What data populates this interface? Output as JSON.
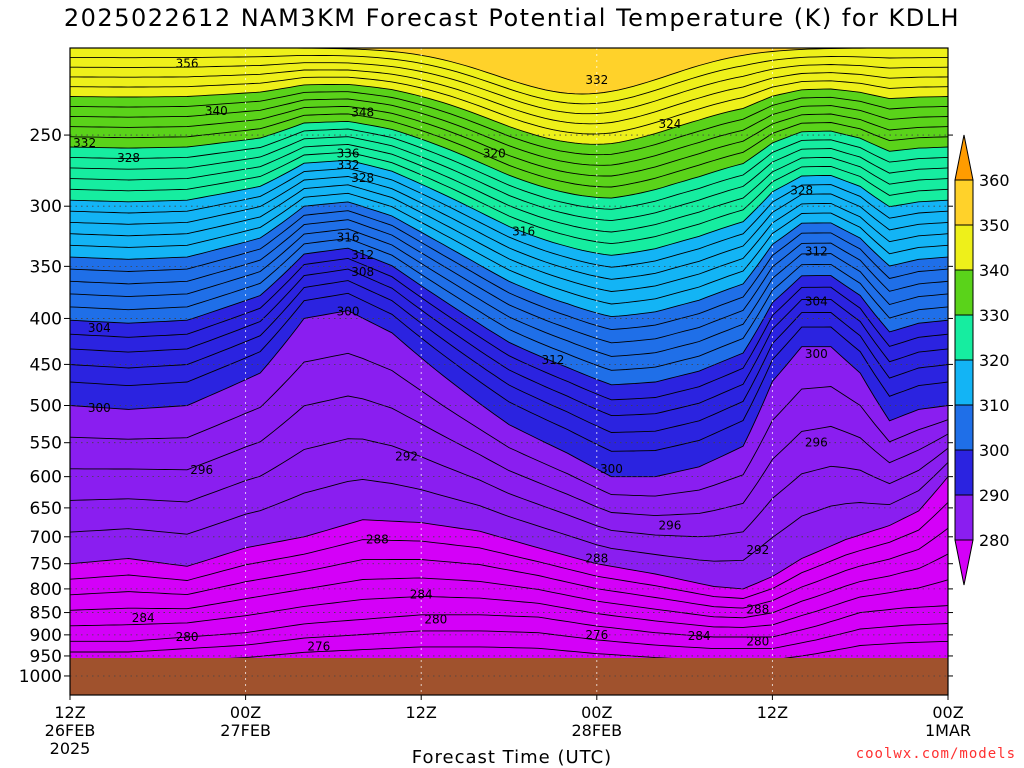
{
  "header": {
    "title": "2025022612 NAM3KM Forecast Potential Temperature (K) for KDLH"
  },
  "footer": {
    "credit": "coolwx.com/models"
  },
  "colors": {
    "ground": "#a0522d",
    "bands": [
      "#d400f8",
      "#8a1ef0",
      "#2b23e0",
      "#1f6fe8",
      "#13b4f5",
      "#16eda0",
      "#5ad31a",
      "#eef01a",
      "#ffd22a",
      "#ff9c00"
    ]
  },
  "chart_data": {
    "type": "contour",
    "title": "2025022612 NAM3KM Forecast Potential Temperature (K) for KDLH",
    "xlabel": "Forecast Time (UTC)",
    "ylabel": "",
    "x_ticks": [
      {
        "value": 0,
        "line1": "12Z",
        "line2": "26FEB",
        "line3": "2025"
      },
      {
        "value": 12,
        "line1": "00Z",
        "line2": "27FEB",
        "line3": ""
      },
      {
        "value": 24,
        "line1": "12Z",
        "line2": "",
        "line3": ""
      },
      {
        "value": 36,
        "line1": "00Z",
        "line2": "28FEB",
        "line3": ""
      },
      {
        "value": 48,
        "line1": "12Z",
        "line2": "",
        "line3": ""
      },
      {
        "value": 60,
        "line1": "00Z",
        "line2": "1MAR",
        "line3": ""
      }
    ],
    "xlim": [
      0,
      60
    ],
    "y_ticks": [
      "250",
      "300",
      "350",
      "400",
      "450",
      "500",
      "550",
      "600",
      "650",
      "700",
      "750",
      "800",
      "850",
      "900",
      "950",
      "1000"
    ],
    "ylim": [
      1050,
      200
    ],
    "y_scale": "log",
    "colorbar": {
      "levels": [
        "280",
        "290",
        "300",
        "310",
        "320",
        "330",
        "340",
        "350",
        "360"
      ],
      "extend": "both"
    },
    "contour_interval": 2,
    "ridge_lines": [
      {
        "value": 300,
        "points": [
          [
            0,
            500
          ],
          [
            4,
            505
          ],
          [
            8,
            500
          ],
          [
            13,
            460
          ],
          [
            16,
            400
          ],
          [
            19,
            392
          ],
          [
            22,
            415
          ],
          [
            26,
            470
          ],
          [
            30,
            525
          ],
          [
            34,
            565
          ],
          [
            37,
            600
          ],
          [
            40,
            600
          ],
          [
            43,
            585
          ],
          [
            46,
            555
          ],
          [
            48,
            470
          ],
          [
            50,
            430
          ],
          [
            52,
            430
          ],
          [
            54,
            460
          ],
          [
            56,
            520
          ],
          [
            58,
            505
          ],
          [
            60,
            500
          ]
        ]
      },
      {
        "value": 290,
        "points": [
          [
            0,
            750
          ],
          [
            4,
            740
          ],
          [
            8,
            755
          ],
          [
            12,
            720
          ],
          [
            16,
            700
          ],
          [
            20,
            670
          ],
          [
            24,
            675
          ],
          [
            28,
            690
          ],
          [
            32,
            720
          ],
          [
            36,
            750
          ],
          [
            40,
            770
          ],
          [
            44,
            795
          ],
          [
            46,
            800
          ],
          [
            48,
            775
          ],
          [
            50,
            740
          ],
          [
            53,
            705
          ],
          [
            56,
            680
          ],
          [
            58,
            655
          ],
          [
            60,
            600
          ]
        ]
      },
      {
        "value": 280,
        "points": [
          [
            0,
            915
          ],
          [
            4,
            915
          ],
          [
            8,
            905
          ],
          [
            12,
            895
          ],
          [
            16,
            875
          ],
          [
            20,
            865
          ],
          [
            24,
            855
          ],
          [
            28,
            855
          ],
          [
            32,
            860
          ],
          [
            36,
            880
          ],
          [
            40,
            895
          ],
          [
            44,
            905
          ],
          [
            48,
            905
          ],
          [
            51,
            880
          ],
          [
            54,
            850
          ],
          [
            57,
            840
          ],
          [
            60,
            835
          ]
        ]
      }
    ],
    "contour_labels": [
      {
        "text": "356",
        "x": 8,
        "p": 208
      },
      {
        "text": "340",
        "x": 10,
        "p": 235
      },
      {
        "text": "332",
        "x": 1,
        "p": 255
      },
      {
        "text": "328",
        "x": 4,
        "p": 265
      },
      {
        "text": "348",
        "x": 20,
        "p": 236
      },
      {
        "text": "336",
        "x": 19,
        "p": 262
      },
      {
        "text": "332",
        "x": 19,
        "p": 270
      },
      {
        "text": "328",
        "x": 20,
        "p": 279
      },
      {
        "text": "316",
        "x": 19,
        "p": 325
      },
      {
        "text": "312",
        "x": 20,
        "p": 340
      },
      {
        "text": "308",
        "x": 20,
        "p": 355
      },
      {
        "text": "300",
        "x": 19,
        "p": 393
      },
      {
        "text": "304",
        "x": 2,
        "p": 410
      },
      {
        "text": "300",
        "x": 2,
        "p": 503
      },
      {
        "text": "296",
        "x": 9,
        "p": 590
      },
      {
        "text": "292",
        "x": 23,
        "p": 570
      },
      {
        "text": "288",
        "x": 21,
        "p": 705
      },
      {
        "text": "284",
        "x": 24,
        "p": 812
      },
      {
        "text": "284",
        "x": 5,
        "p": 862
      },
      {
        "text": "280",
        "x": 25,
        "p": 865
      },
      {
        "text": "280",
        "x": 8,
        "p": 905
      },
      {
        "text": "276",
        "x": 17,
        "p": 927
      },
      {
        "text": "332",
        "x": 36,
        "p": 217
      },
      {
        "text": "324",
        "x": 41,
        "p": 243
      },
      {
        "text": "320",
        "x": 29,
        "p": 262
      },
      {
        "text": "316",
        "x": 31,
        "p": 320
      },
      {
        "text": "312",
        "x": 33,
        "p": 445
      },
      {
        "text": "300",
        "x": 37,
        "p": 588
      },
      {
        "text": "296",
        "x": 41,
        "p": 680
      },
      {
        "text": "288",
        "x": 36,
        "p": 740
      },
      {
        "text": "276",
        "x": 36,
        "p": 900
      },
      {
        "text": "292",
        "x": 47,
        "p": 724
      },
      {
        "text": "288",
        "x": 47,
        "p": 843
      },
      {
        "text": "284",
        "x": 43,
        "p": 903
      },
      {
        "text": "280",
        "x": 47,
        "p": 915
      },
      {
        "text": "328",
        "x": 50,
        "p": 288
      },
      {
        "text": "312",
        "x": 51,
        "p": 337
      },
      {
        "text": "304",
        "x": 51,
        "p": 383
      },
      {
        "text": "300",
        "x": 51,
        "p": 438
      },
      {
        "text": "296",
        "x": 51,
        "p": 550
      }
    ]
  }
}
